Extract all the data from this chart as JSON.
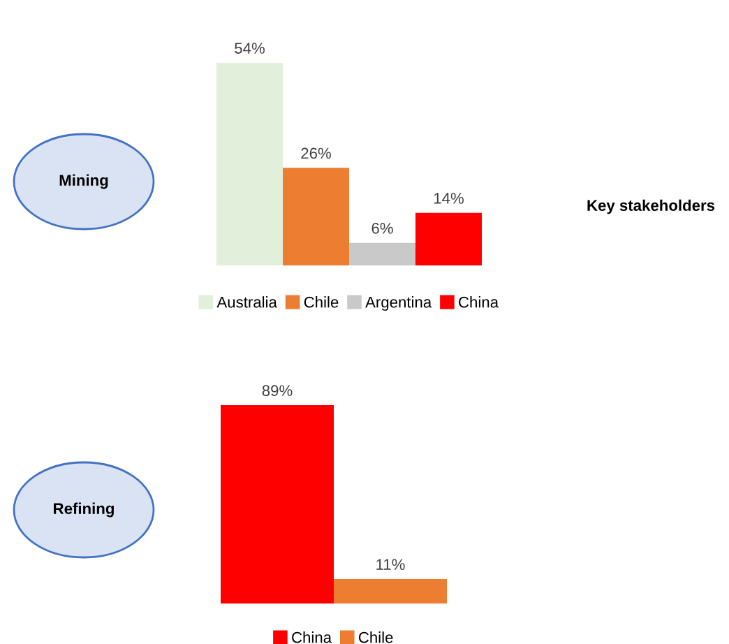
{
  "chart_data": [
    {
      "type": "bar",
      "categories": [
        null
      ],
      "series": [
        {
          "name": "Australia",
          "color": "#e2efda",
          "values": [
            54
          ],
          "value_labels": [
            "54%"
          ]
        },
        {
          "name": "Chile",
          "color": "#ed7d31",
          "values": [
            26
          ],
          "value_labels": [
            "26%"
          ]
        },
        {
          "name": "Argentina",
          "color": "#c9c9c9",
          "values": [
            6
          ],
          "value_labels": [
            "6%"
          ]
        },
        {
          "name": "China",
          "color": "#ff0000",
          "values": [
            14
          ],
          "value_labels": [
            "14%"
          ]
        }
      ],
      "legend": "bottom",
      "tick_labels": false,
      "grid": false,
      "annotations": [
        "Mining"
      ]
    },
    {
      "type": "other",
      "title": "Key stakeholders"
    },
    {
      "type": "bar",
      "categories": [
        null
      ],
      "series": [
        {
          "name": "China",
          "color": "#ff0000",
          "values": [
            89
          ],
          "value_labels": [
            "89%"
          ]
        },
        {
          "name": "Chile",
          "color": "#ed7d31",
          "values": [
            11
          ],
          "value_labels": [
            "11%"
          ]
        }
      ],
      "legend": "bottom",
      "tick_labels": false,
      "grid": false,
      "annotations": [
        "Refining"
      ]
    }
  ]
}
